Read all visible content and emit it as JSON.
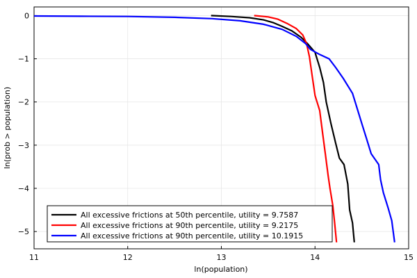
{
  "chart_data": {
    "type": "line",
    "title": "",
    "xlabel": "ln(population)",
    "ylabel": "ln(prob > population)",
    "xlim": [
      11,
      15
    ],
    "ylim": [
      -5.4,
      0.2
    ],
    "xticks": [
      "11",
      "12",
      "13",
      "14",
      "15"
    ],
    "yticks": [
      "0",
      "−1",
      "−2",
      "−3",
      "−4",
      "−5"
    ],
    "grid": true,
    "legend_position": "bottom-left",
    "series": [
      {
        "name": "All excessive frictions at 50th percentile, utility = 9.7587",
        "color": "#000000",
        "points": [
          [
            12.89,
            0.0
          ],
          [
            13.1,
            -0.02
          ],
          [
            13.3,
            -0.05
          ],
          [
            13.45,
            -0.1
          ],
          [
            13.55,
            -0.16
          ],
          [
            13.65,
            -0.25
          ],
          [
            13.75,
            -0.35
          ],
          [
            13.85,
            -0.5
          ],
          [
            13.92,
            -0.65
          ],
          [
            14.0,
            -0.85
          ],
          [
            14.05,
            -1.2
          ],
          [
            14.09,
            -1.55
          ],
          [
            14.12,
            -2.0
          ],
          [
            14.17,
            -2.5
          ],
          [
            14.22,
            -2.95
          ],
          [
            14.26,
            -3.3
          ],
          [
            14.31,
            -3.45
          ],
          [
            14.35,
            -3.9
          ],
          [
            14.37,
            -4.5
          ],
          [
            14.4,
            -4.8
          ],
          [
            14.42,
            -5.25
          ]
        ]
      },
      {
        "name": "All excessive frictions at 90th percentile, utility = 9.2175",
        "color": "#ff0000",
        "points": [
          [
            13.35,
            0.0
          ],
          [
            13.5,
            -0.03
          ],
          [
            13.6,
            -0.08
          ],
          [
            13.7,
            -0.18
          ],
          [
            13.8,
            -0.3
          ],
          [
            13.87,
            -0.45
          ],
          [
            13.91,
            -0.65
          ],
          [
            13.94,
            -0.95
          ],
          [
            13.97,
            -1.4
          ],
          [
            14.0,
            -1.85
          ],
          [
            14.05,
            -2.2
          ],
          [
            14.08,
            -2.7
          ],
          [
            14.11,
            -3.2
          ],
          [
            14.14,
            -3.7
          ],
          [
            14.16,
            -4.0
          ],
          [
            14.19,
            -4.4
          ],
          [
            14.21,
            -4.8
          ],
          [
            14.23,
            -5.25
          ]
        ]
      },
      {
        "name": "All excessive frictions at 90th percentile, utility = 10.1915",
        "color": "#0000ff",
        "points": [
          [
            11.0,
            -0.01
          ],
          [
            11.5,
            -0.015
          ],
          [
            12.0,
            -0.02
          ],
          [
            12.5,
            -0.04
          ],
          [
            12.9,
            -0.07
          ],
          [
            13.2,
            -0.12
          ],
          [
            13.45,
            -0.2
          ],
          [
            13.65,
            -0.32
          ],
          [
            13.8,
            -0.48
          ],
          [
            13.9,
            -0.65
          ],
          [
            13.95,
            -0.78
          ],
          [
            14.05,
            -0.9
          ],
          [
            14.15,
            -1.0
          ],
          [
            14.22,
            -1.2
          ],
          [
            14.3,
            -1.45
          ],
          [
            14.4,
            -1.8
          ],
          [
            14.45,
            -2.15
          ],
          [
            14.5,
            -2.5
          ],
          [
            14.55,
            -2.85
          ],
          [
            14.6,
            -3.2
          ],
          [
            14.68,
            -3.45
          ],
          [
            14.7,
            -3.8
          ],
          [
            14.73,
            -4.1
          ],
          [
            14.78,
            -4.45
          ],
          [
            14.82,
            -4.75
          ],
          [
            14.85,
            -5.25
          ]
        ]
      }
    ]
  }
}
